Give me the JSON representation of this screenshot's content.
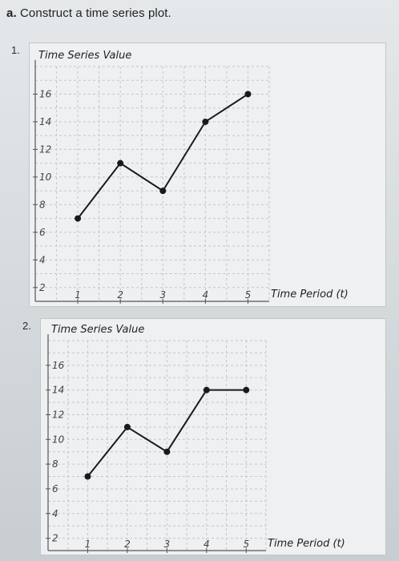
{
  "question": {
    "prefix": "a.",
    "text": "Construct a time series plot."
  },
  "options": [
    {
      "number": "1."
    },
    {
      "number": "2."
    }
  ],
  "chart_data": [
    {
      "type": "line",
      "ylabel": "Time Series Value",
      "xlabel": "Time Period (t)",
      "x": [
        1,
        2,
        3,
        4,
        5
      ],
      "y": [
        7,
        11,
        9,
        14,
        16
      ],
      "xticks": [
        "1",
        "2",
        "3",
        "4",
        "5"
      ],
      "yticks": [
        "2",
        "4",
        "6",
        "8",
        "10",
        "12",
        "14",
        "16"
      ],
      "xlim": [
        0,
        5.5
      ],
      "ylim": [
        1,
        18
      ],
      "grid": true,
      "line_color": "#1a1a1a"
    },
    {
      "type": "line",
      "ylabel": "Time Series Value",
      "xlabel": "Time Period (t)",
      "x": [
        1,
        2,
        3,
        4,
        5
      ],
      "y": [
        7,
        11,
        9,
        14,
        14
      ],
      "xticks": [
        "1",
        "2",
        "3",
        "4",
        "5"
      ],
      "yticks": [
        "2",
        "4",
        "6",
        "8",
        "10",
        "12",
        "14",
        "16"
      ],
      "xlim": [
        0,
        5.5
      ],
      "ylim": [
        1,
        18
      ],
      "grid": true,
      "line_color": "#1a1a1a"
    }
  ]
}
